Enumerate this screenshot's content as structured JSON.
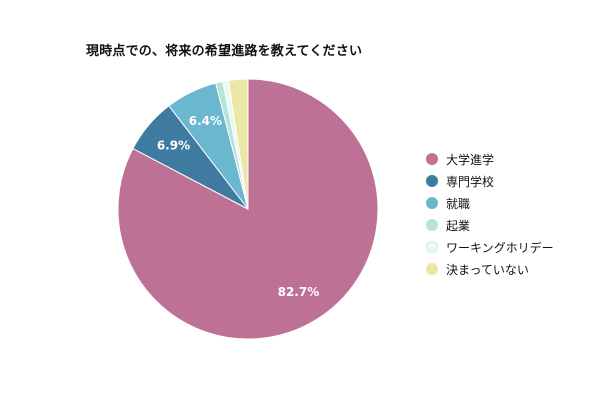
{
  "title": "現時点での、将来の希望進路を教えてください",
  "chart_data": {
    "type": "pie",
    "categories": [
      "大学進学",
      "専門学校",
      "就職",
      "起業",
      "ワーキングホリデー",
      "決まっていない"
    ],
    "values": [
      82.7,
      6.9,
      6.4,
      0.9,
      0.7,
      2.4
    ],
    "data_labels": [
      "82.7%",
      "6.9%",
      "6.4%",
      "",
      "",
      ""
    ],
    "colors": [
      "#bd7195",
      "#3f7aa1",
      "#6bb7cf",
      "#b6e4d8",
      "#eaf7f4",
      "#ece7a4"
    ],
    "legend_position": "right"
  }
}
